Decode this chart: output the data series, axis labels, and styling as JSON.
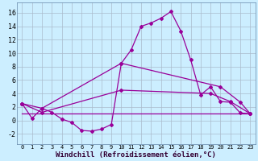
{
  "bg_color": "#cceeff",
  "grid_color": "#aabbcc",
  "line_color": "#990099",
  "marker_color": "#990099",
  "xlabel": "Windchill (Refroidissement éolien,°C)",
  "xlabel_fontsize": 6.5,
  "yticks": [
    -2,
    0,
    2,
    4,
    6,
    8,
    10,
    12,
    14,
    16
  ],
  "xlim": [
    -0.5,
    23.5
  ],
  "ylim": [
    -3.5,
    17.5
  ],
  "xtick_labels": [
    "0",
    "1",
    "2",
    "3",
    "4",
    "5",
    "6",
    "7",
    "8",
    "9",
    "10",
    "11",
    "12",
    "13",
    "14",
    "15",
    "16",
    "17",
    "18",
    "19",
    "20",
    "21",
    "22",
    "23"
  ],
  "line1_x": [
    0,
    1,
    2,
    3,
    4,
    5,
    6,
    7,
    8,
    9,
    10,
    11,
    12,
    13,
    14,
    15,
    16,
    17,
    18,
    19,
    20,
    21,
    22,
    23
  ],
  "line1_y": [
    2.5,
    0.3,
    1.8,
    1.2,
    0.2,
    -0.3,
    -1.5,
    -1.6,
    -1.3,
    -0.6,
    8.5,
    10.5,
    14.0,
    14.5,
    15.2,
    16.2,
    13.3,
    9.0,
    3.8,
    5.0,
    2.8,
    2.7,
    1.1,
    1.0
  ],
  "line2_x": [
    0,
    2,
    10,
    20,
    22,
    23
  ],
  "line2_y": [
    2.5,
    1.8,
    8.5,
    5.0,
    2.7,
    1.0
  ],
  "line3_x": [
    0,
    2,
    10,
    19,
    21,
    23
  ],
  "line3_y": [
    2.5,
    1.2,
    4.5,
    4.0,
    2.8,
    1.0
  ],
  "line4_x": [
    0,
    23
  ],
  "line4_y": [
    1.0,
    1.0
  ]
}
